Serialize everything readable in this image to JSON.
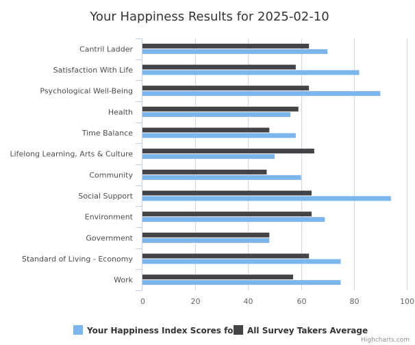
{
  "chart_data": {
    "type": "bar",
    "orientation": "horizontal",
    "title": "Your Happiness Results for 2025-02-10",
    "xlabel": "",
    "ylabel": "",
    "categories": [
      "Cantril Ladder",
      "Satisfaction With Life",
      "Psychological Well-Being",
      "Health",
      "Time Balance",
      "Lifelong Learning, Arts & Culture",
      "Community",
      "Social Support",
      "Environment",
      "Government",
      "Standard of Living - Economy",
      "Work"
    ],
    "series": [
      {
        "name": "All Survey Takers Average",
        "color": "#434348",
        "values": [
          63,
          58,
          63,
          59,
          48,
          65,
          47,
          64,
          64,
          48,
          63,
          57
        ]
      },
      {
        "name": "Your Happiness Index Scores for",
        "color": "#7cb5ec",
        "values": [
          70,
          82,
          90,
          56,
          58,
          50,
          60,
          94,
          69,
          48,
          75,
          75
        ]
      }
    ],
    "xlim": [
      0,
      100
    ],
    "ticks": [
      "0",
      "20",
      "40",
      "60",
      "80",
      "100"
    ],
    "grid": true,
    "legend_position": "bottom",
    "legend_order": [
      "Your Happiness Index Scores for",
      "All Survey Takers Average"
    ],
    "credits": "Highcharts.com"
  }
}
